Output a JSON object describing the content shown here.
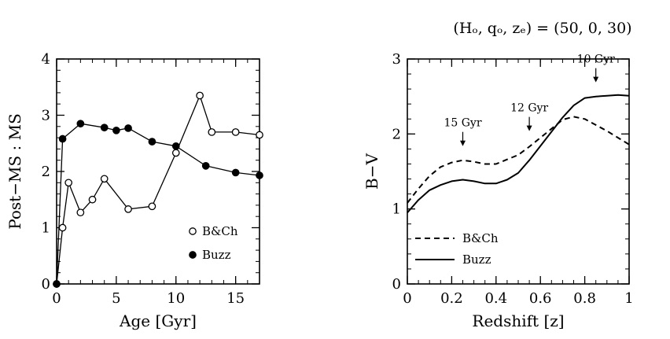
{
  "super_title": "(Hₒ, qₒ, zₑ) = (50, 0, 30)",
  "chart_data": [
    {
      "type": "line",
      "xlabel": "Age [Gyr]",
      "ylabel": "Post−MS : MS",
      "xlim": [
        0,
        17
      ],
      "ylim": [
        0,
        4
      ],
      "xticks": [
        0,
        5,
        10,
        15
      ],
      "yticks": [
        0,
        1,
        2,
        3,
        4
      ],
      "xtick_labels": [
        "0",
        "5",
        "10",
        "15"
      ],
      "ytick_labels": [
        "0",
        "1",
        "2",
        "3",
        "4"
      ],
      "legend_position": "bottom-right",
      "series": [
        {
          "name": "B&Ch",
          "marker": "open-circle",
          "x": [
            0,
            0.5,
            1,
            2,
            3,
            4,
            6,
            8,
            10,
            12,
            13,
            15,
            17
          ],
          "y": [
            0,
            1.0,
            1.8,
            1.27,
            1.5,
            1.87,
            1.33,
            1.38,
            2.33,
            3.35,
            2.7,
            2.7,
            2.65
          ]
        },
        {
          "name": "Buzz",
          "marker": "filled-circle",
          "x": [
            0,
            0.5,
            2,
            4,
            5,
            6,
            8,
            10,
            12.5,
            15,
            17
          ],
          "y": [
            0,
            2.58,
            2.85,
            2.78,
            2.73,
            2.77,
            2.53,
            2.45,
            2.1,
            1.98,
            1.93
          ]
        }
      ]
    },
    {
      "type": "line",
      "xlabel": "Redshift [z]",
      "ylabel": "B−V",
      "xlim": [
        0,
        1
      ],
      "ylim": [
        0,
        3
      ],
      "xticks": [
        0,
        0.2,
        0.4,
        0.6,
        0.8,
        1
      ],
      "yticks": [
        0,
        1,
        2,
        3
      ],
      "xtick_labels": [
        "0",
        "0.2",
        "0.4",
        "0.6",
        "0.8",
        "1"
      ],
      "ytick_labels": [
        "0",
        "1",
        "2",
        "3"
      ],
      "legend_position": "bottom-left",
      "series": [
        {
          "name": "B&Ch",
          "linestyle": "dashed",
          "x": [
            0,
            0.05,
            0.1,
            0.15,
            0.2,
            0.25,
            0.3,
            0.35,
            0.4,
            0.45,
            0.5,
            0.55,
            0.6,
            0.65,
            0.7,
            0.75,
            0.8,
            0.85,
            0.9,
            0.95,
            1.0
          ],
          "y": [
            1.08,
            1.27,
            1.44,
            1.56,
            1.62,
            1.65,
            1.63,
            1.6,
            1.6,
            1.66,
            1.72,
            1.83,
            1.95,
            2.07,
            2.19,
            2.23,
            2.2,
            2.12,
            2.04,
            1.95,
            1.86
          ]
        },
        {
          "name": "Buzz",
          "linestyle": "solid",
          "x": [
            0,
            0.05,
            0.1,
            0.15,
            0.2,
            0.25,
            0.3,
            0.35,
            0.4,
            0.45,
            0.5,
            0.55,
            0.6,
            0.65,
            0.7,
            0.75,
            0.8,
            0.85,
            0.9,
            0.95,
            1.0
          ],
          "y": [
            0.95,
            1.12,
            1.25,
            1.32,
            1.37,
            1.39,
            1.37,
            1.34,
            1.34,
            1.39,
            1.48,
            1.65,
            1.84,
            2.03,
            2.22,
            2.38,
            2.48,
            2.5,
            2.51,
            2.52,
            2.51
          ]
        }
      ],
      "annotations": [
        {
          "text": "15 Gyr",
          "x": 0.25,
          "y": 1.65
        },
        {
          "text": "12 Gyr",
          "x": 0.55,
          "y": 1.85
        },
        {
          "text": "10 Gyr",
          "x": 0.85,
          "y": 2.5
        }
      ]
    }
  ]
}
